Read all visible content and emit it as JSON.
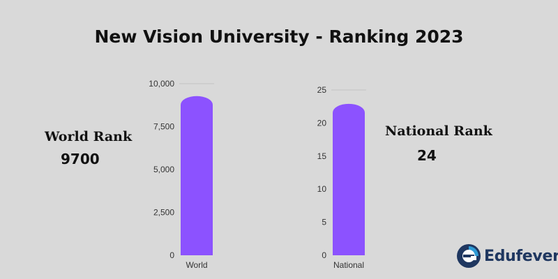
{
  "title": "New Vision University - Ranking 2023",
  "world_label": "World Rank",
  "world_value": "9700",
  "national_label": "National Rank",
  "national_value": "24",
  "brand": "Edufever",
  "colors": {
    "bar": "#8c52ff",
    "background": "#d9d9d9",
    "brand": "#1f3760",
    "brand_accent": "#2e9bd6"
  },
  "chart_data": [
    {
      "type": "bar",
      "categories": [
        "World"
      ],
      "values": [
        9700
      ],
      "ylim": [
        0,
        10000
      ],
      "yticks": [
        0,
        2500,
        5000,
        7500,
        10000
      ],
      "ytick_labels": [
        "0",
        "2,500",
        "5,000",
        "7,500",
        "10,000"
      ],
      "xlabel": "",
      "ylabel": "",
      "grid": false
    },
    {
      "type": "bar",
      "categories": [
        "National"
      ],
      "values": [
        24
      ],
      "ylim": [
        0,
        25
      ],
      "yticks": [
        0,
        5,
        10,
        15,
        20,
        25
      ],
      "ytick_labels": [
        "0",
        "5",
        "10",
        "15",
        "20",
        "25"
      ],
      "xlabel": "",
      "ylabel": "",
      "grid": false
    }
  ]
}
